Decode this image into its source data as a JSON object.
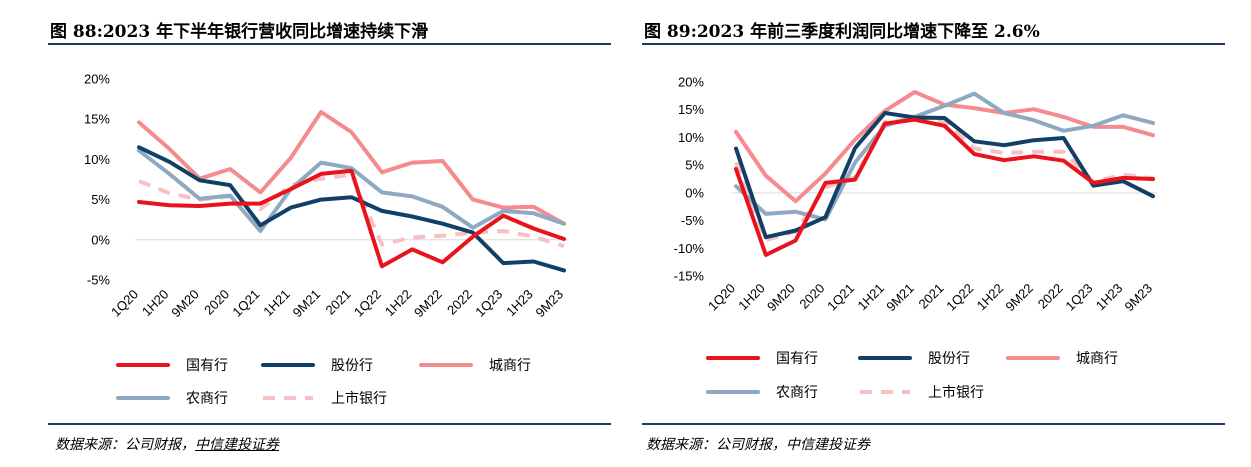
{
  "left": {
    "title": "图 88:2023 年下半年银行营收同比增速持续下滑",
    "source_prefix": "数据来源：公司财报，",
    "source_link": "中信建投证券",
    "chart_data": {
      "type": "line",
      "categories": [
        "1Q20",
        "1H20",
        "9M20",
        "2020",
        "1Q21",
        "1H21",
        "9M21",
        "2021",
        "1Q22",
        "1H22",
        "9M22",
        "2022",
        "1Q23",
        "1H23",
        "9M23"
      ],
      "ylim": [
        -5,
        20
      ],
      "yticks": [
        "20%",
        "15%",
        "10%",
        "5%",
        "0%",
        "-5%"
      ],
      "ytick_values": [
        20,
        15,
        10,
        5,
        0,
        -5
      ],
      "series": [
        {
          "name": "国有行",
          "color": "#e8131b",
          "dash": false,
          "values": [
            4.7,
            4.3,
            4.2,
            4.5,
            4.5,
            6.3,
            8.2,
            8.6,
            -3.3,
            -1.2,
            -2.8,
            0.4,
            3.0,
            1.4,
            0.1
          ]
        },
        {
          "name": "股份行",
          "color": "#123f66",
          "dash": false,
          "values": [
            11.5,
            9.7,
            7.4,
            6.8,
            1.8,
            4.0,
            5.0,
            5.3,
            3.6,
            2.9,
            2.0,
            0.9,
            -2.9,
            -2.7,
            -3.8
          ]
        },
        {
          "name": "城商行",
          "color": "#f58a8f",
          "dash": false,
          "values": [
            14.6,
            11.3,
            7.6,
            8.8,
            5.9,
            10.2,
            15.9,
            13.4,
            8.4,
            9.6,
            9.8,
            5.0,
            4.0,
            4.1,
            2.0
          ]
        },
        {
          "name": "农商行",
          "color": "#8ea9c1",
          "dash": false,
          "values": [
            11.1,
            8.2,
            5.1,
            5.5,
            1.1,
            6.3,
            9.6,
            8.9,
            5.9,
            5.4,
            4.1,
            1.5,
            3.6,
            3.3,
            2.0
          ]
        },
        {
          "name": "上市银行",
          "color": "#f7c1c4",
          "dash": true,
          "values": [
            7.3,
            5.8,
            5.0,
            5.4,
            3.8,
            6.8,
            7.6,
            8.1,
            -0.6,
            0.3,
            0.5,
            0.9,
            1.1,
            0.4,
            -0.8
          ]
        }
      ],
      "legend": "bottom"
    }
  },
  "right": {
    "title": "图 89:2023 年前三季度利润同比增速下降至 2.6%",
    "source_text": "数据来源：公司财报，中信建投证券",
    "chart_data": {
      "type": "line",
      "categories": [
        "1Q20",
        "1H20",
        "9M20",
        "2020",
        "1Q21",
        "1H21",
        "9M21",
        "2021",
        "1Q22",
        "1H22",
        "9M22",
        "2022",
        "1Q23",
        "1H23",
        "9M23"
      ],
      "ylim": [
        -15,
        20
      ],
      "yticks": [
        "20%",
        "15%",
        "10%",
        "5%",
        "0%",
        "-5%",
        "-10%",
        "-15%"
      ],
      "ytick_values": [
        20,
        15,
        10,
        5,
        0,
        -5,
        -10,
        -15
      ],
      "series": [
        {
          "name": "国有行",
          "color": "#e8131b",
          "dash": false,
          "values": [
            4.3,
            -11.2,
            -8.6,
            1.8,
            2.4,
            12.5,
            13.2,
            12.1,
            7.0,
            5.9,
            6.6,
            5.8,
            1.8,
            2.7,
            2.5
          ]
        },
        {
          "name": "股份行",
          "color": "#123f66",
          "dash": false,
          "values": [
            8.0,
            -8.0,
            -6.8,
            -4.4,
            8.1,
            14.4,
            13.6,
            13.5,
            9.3,
            8.6,
            9.5,
            9.9,
            1.3,
            2.1,
            -0.6
          ]
        },
        {
          "name": "城商行",
          "color": "#f58a8f",
          "dash": false,
          "values": [
            11.0,
            3.1,
            -1.5,
            3.5,
            9.6,
            14.8,
            18.2,
            15.9,
            15.3,
            14.4,
            15.1,
            13.7,
            11.9,
            11.9,
            10.4
          ]
        },
        {
          "name": "农商行",
          "color": "#8ea9c1",
          "dash": false,
          "values": [
            1.2,
            -3.8,
            -3.4,
            -4.8,
            5.5,
            12.1,
            13.7,
            15.7,
            17.9,
            14.4,
            13.1,
            11.2,
            12.1,
            14.0,
            12.6
          ]
        },
        {
          "name": "上市银行",
          "color": "#f7c1c4",
          "dash": true,
          "values": [
            5.5,
            -8.5,
            -7.0,
            1.0,
            2.8,
            12.8,
            13.4,
            12.8,
            8.0,
            7.2,
            7.4,
            7.4,
            2.0,
            3.3,
            2.6
          ]
        }
      ],
      "legend": "bottom"
    }
  }
}
